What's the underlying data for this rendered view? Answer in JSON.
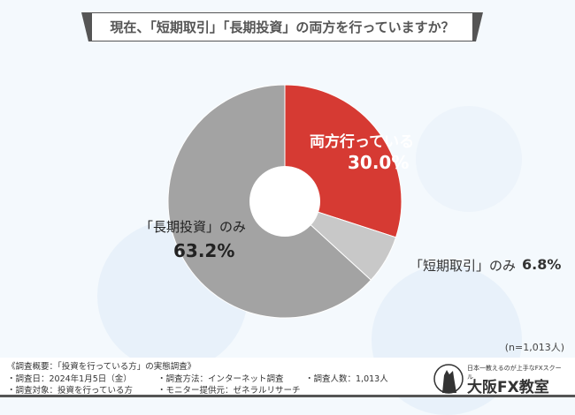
{
  "title": "現在、「短期取引」「長期投資」の両方を行っていますか？",
  "chart_data": {
    "type": "pie",
    "donut": true,
    "title": "現在、「短期取引」「長期投資」の両方を行っていますか？",
    "categories": [
      "両方行っている",
      "「短期取引」のみ",
      "「長期投資」のみ"
    ],
    "values": [
      30.0,
      6.8,
      63.2
    ],
    "value_labels": [
      "30.0%",
      "6.8%",
      "63.2%"
    ],
    "colors": [
      "#d63a33",
      "#c8c8c8",
      "#a3a3a3"
    ],
    "note": "(n=1,013人)"
  },
  "footer": {
    "heading": "《調査概要：「投資を行っている方」の実態調査》",
    "date": "・調査日：2024年1月5日（金）",
    "target": "・調査対象：投資を行っている方",
    "method": "・調査方法：インターネット調査",
    "provider": "・モニター提供元：ゼネラルリサーチ",
    "count": "・調査人数：1,013人"
  },
  "logo": {
    "tagline": "日本一教えるのが上手なFXスクール",
    "name": "大阪FX教室"
  }
}
